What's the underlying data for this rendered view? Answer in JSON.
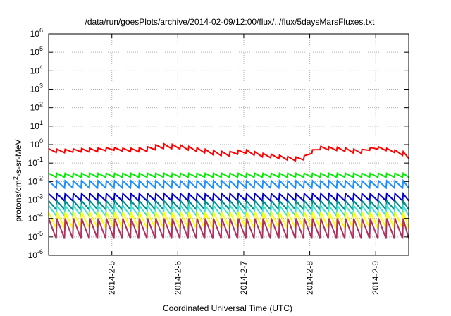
{
  "chart_data": {
    "type": "line",
    "title": "/data/run/goesPlots/archive/2014-02-09/12:00/flux/../flux/5daysMarsFluxes.txt",
    "xlabel": "Coordinated Universal Time (UTC)",
    "ylabel_base": "protons/cm",
    "ylabel_sup": "2",
    "ylabel_tail": "-s-sr-MeV",
    "yscale": "log",
    "ylim": [
      1e-06,
      1000000.0
    ],
    "xlim": [
      "2014-02-04 01:00",
      "2014-02-09 12:00"
    ],
    "grid": true,
    "y_ticks": [
      {
        "base": "10",
        "exp": "-6"
      },
      {
        "base": "10",
        "exp": "-5"
      },
      {
        "base": "10",
        "exp": "-4"
      },
      {
        "base": "10",
        "exp": "-3"
      },
      {
        "base": "10",
        "exp": "-2"
      },
      {
        "base": "10",
        "exp": "-1"
      },
      {
        "base": "10",
        "exp": "0"
      },
      {
        "base": "10",
        "exp": "1"
      },
      {
        "base": "10",
        "exp": "2"
      },
      {
        "base": "10",
        "exp": "3"
      },
      {
        "base": "10",
        "exp": "4"
      },
      {
        "base": "10",
        "exp": "5"
      },
      {
        "base": "10",
        "exp": "6"
      }
    ],
    "x_ticks": [
      {
        "label": "2014-2-5",
        "date": "2014-02-05 00:00"
      },
      {
        "label": "2014-2-6",
        "date": "2014-02-06 00:00"
      },
      {
        "label": "2014-2-7",
        "date": "2014-02-07 00:00"
      },
      {
        "label": "2014-2-8",
        "date": "2014-02-08 00:00"
      },
      {
        "label": "2014-2-9",
        "date": "2014-02-09 00:00"
      }
    ],
    "series": [
      {
        "color": "#ff0000",
        "sawtooth_period_hours": 3,
        "x": [
          "2014-02-04 01:00",
          "2014-02-04 06:00",
          "2014-02-04 12:00",
          "2014-02-04 18:00",
          "2014-02-05 00:00",
          "2014-02-05 06:00",
          "2014-02-05 12:00",
          "2014-02-05 18:00",
          "2014-02-06 00:00",
          "2014-02-06 06:00",
          "2014-02-06 12:00",
          "2014-02-06 18:00",
          "2014-02-07 00:00",
          "2014-02-07 06:00",
          "2014-02-07 12:00",
          "2014-02-07 18:00",
          "2014-02-07 22:00",
          "2014-02-08 04:00",
          "2014-02-08 12:00",
          "2014-02-08 18:00",
          "2014-02-09 00:00",
          "2014-02-09 06:00",
          "2014-02-09 12:00"
        ],
        "min": [
          0.4,
          0.36,
          0.4,
          0.4,
          0.5,
          0.42,
          0.4,
          0.6,
          0.6,
          0.45,
          0.3,
          0.22,
          0.35,
          0.22,
          0.18,
          0.13,
          0.15,
          0.55,
          0.45,
          0.3,
          0.6,
          0.4,
          0.18
        ],
        "max": [
          0.6,
          0.55,
          0.6,
          0.65,
          0.7,
          0.62,
          0.7,
          1.1,
          1.0,
          0.7,
          0.5,
          0.4,
          0.55,
          0.35,
          0.28,
          0.2,
          0.25,
          0.8,
          0.7,
          0.5,
          0.8,
          0.55,
          0.35
        ]
      },
      {
        "color": "#00ee00",
        "sawtooth_period_hours": 3,
        "x": [
          "2014-02-04 01:00",
          "2014-02-09 12:00"
        ],
        "min": [
          0.017,
          0.017
        ],
        "max": [
          0.028,
          0.028
        ]
      },
      {
        "color": "#1e90ff",
        "sawtooth_period_hours": 3,
        "x": [
          "2014-02-04 01:00",
          "2014-02-09 12:00"
        ],
        "min": [
          0.0045,
          0.0045
        ],
        "max": [
          0.011,
          0.011
        ]
      },
      {
        "color": "#0000cd",
        "sawtooth_period_hours": 3,
        "x": [
          "2014-02-04 01:00",
          "2014-02-09 12:00"
        ],
        "min": [
          0.0009,
          0.0009
        ],
        "max": [
          0.0022,
          0.0022
        ]
      },
      {
        "color": "#008b8b",
        "sawtooth_period_hours": 3,
        "x": [
          "2014-02-04 01:00",
          "2014-02-09 12:00"
        ],
        "min": [
          0.0003,
          0.0003
        ],
        "max": [
          0.0009,
          0.0009
        ]
      },
      {
        "color": "#40e0d0",
        "sawtooth_period_hours": 3,
        "x": [
          "2014-02-04 01:00",
          "2014-02-09 12:00"
        ],
        "min": [
          0.00014,
          0.00014
        ],
        "max": [
          0.0005,
          0.0005
        ]
      },
      {
        "color": "#ffff00",
        "sawtooth_period_hours": 3,
        "x": [
          "2014-02-04 01:00",
          "2014-02-09 12:00"
        ],
        "min": [
          3e-05,
          3e-05
        ],
        "max": [
          0.00022,
          0.00022
        ]
      },
      {
        "color": "#b03060",
        "sawtooth_period_hours": 3,
        "x": [
          "2014-02-04 01:00",
          "2014-02-09 12:00"
        ],
        "min": [
          8e-06,
          8e-06
        ],
        "max": [
          0.0001,
          0.0001
        ]
      }
    ]
  }
}
